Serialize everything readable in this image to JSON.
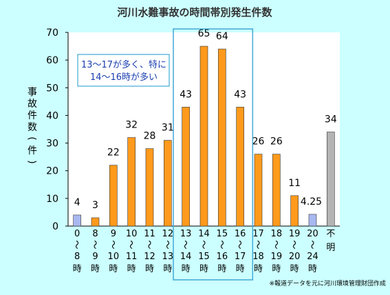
{
  "title": "河川水難事故の時間帯別発生件数",
  "note_lines": [
    "13～17が多く、特に",
    "14～16時が多い"
  ],
  "source": "※報道データを元に河川環境管理財団作成",
  "colors": {
    "background": "#ccffff",
    "plot_area": "#ffffff",
    "bar_main": "#ff9a1c",
    "bar_night": "#a8b8f0",
    "bar_unknown": "#b4b4b4",
    "highlight_box": "#41a9d6",
    "note_text": "#1a3fb0"
  },
  "chart_data": {
    "type": "bar",
    "title": "河川水難事故の時間帯別発生件数",
    "ylabel": "事故件数(件)",
    "xlabel": "",
    "ylim": [
      0,
      70
    ],
    "yticks": [
      0,
      10,
      20,
      30,
      40,
      50,
      60,
      70
    ],
    "grid": false,
    "categories": [
      [
        "0",
        "〜",
        "8",
        "時"
      ],
      [
        "8",
        "〜",
        "9",
        "時"
      ],
      [
        "9",
        "〜",
        "10",
        "時"
      ],
      [
        "10",
        "〜",
        "11",
        "時"
      ],
      [
        "11",
        "〜",
        "12",
        "時"
      ],
      [
        "12",
        "〜",
        "13",
        "時"
      ],
      [
        "13",
        "〜",
        "14",
        "時"
      ],
      [
        "14",
        "〜",
        "15",
        "時"
      ],
      [
        "15",
        "〜",
        "16",
        "時"
      ],
      [
        "16",
        "〜",
        "17",
        "時"
      ],
      [
        "17",
        "〜",
        "18",
        "時"
      ],
      [
        "18",
        "〜",
        "19",
        "時"
      ],
      [
        "19",
        "〜",
        "20",
        "時"
      ],
      [
        "20",
        "〜",
        "24",
        "時"
      ],
      [
        "不",
        "明"
      ]
    ],
    "values": [
      4,
      3,
      22,
      32,
      28,
      31,
      43,
      65,
      64,
      43,
      26,
      26,
      11,
      4.25,
      34
    ],
    "value_labels": [
      "4",
      "3",
      "22",
      "32",
      "28",
      "31",
      "43",
      "65",
      "64",
      "43",
      "26",
      "26",
      "11",
      "4.25",
      "34"
    ],
    "bar_colors": [
      "#a8b8f0",
      "#ff9a1c",
      "#ff9a1c",
      "#ff9a1c",
      "#ff9a1c",
      "#ff9a1c",
      "#ff9a1c",
      "#ff9a1c",
      "#ff9a1c",
      "#ff9a1c",
      "#ff9a1c",
      "#ff9a1c",
      "#ff9a1c",
      "#a8b8f0",
      "#b4b4b4"
    ],
    "highlight_range": [
      6,
      9
    ]
  }
}
